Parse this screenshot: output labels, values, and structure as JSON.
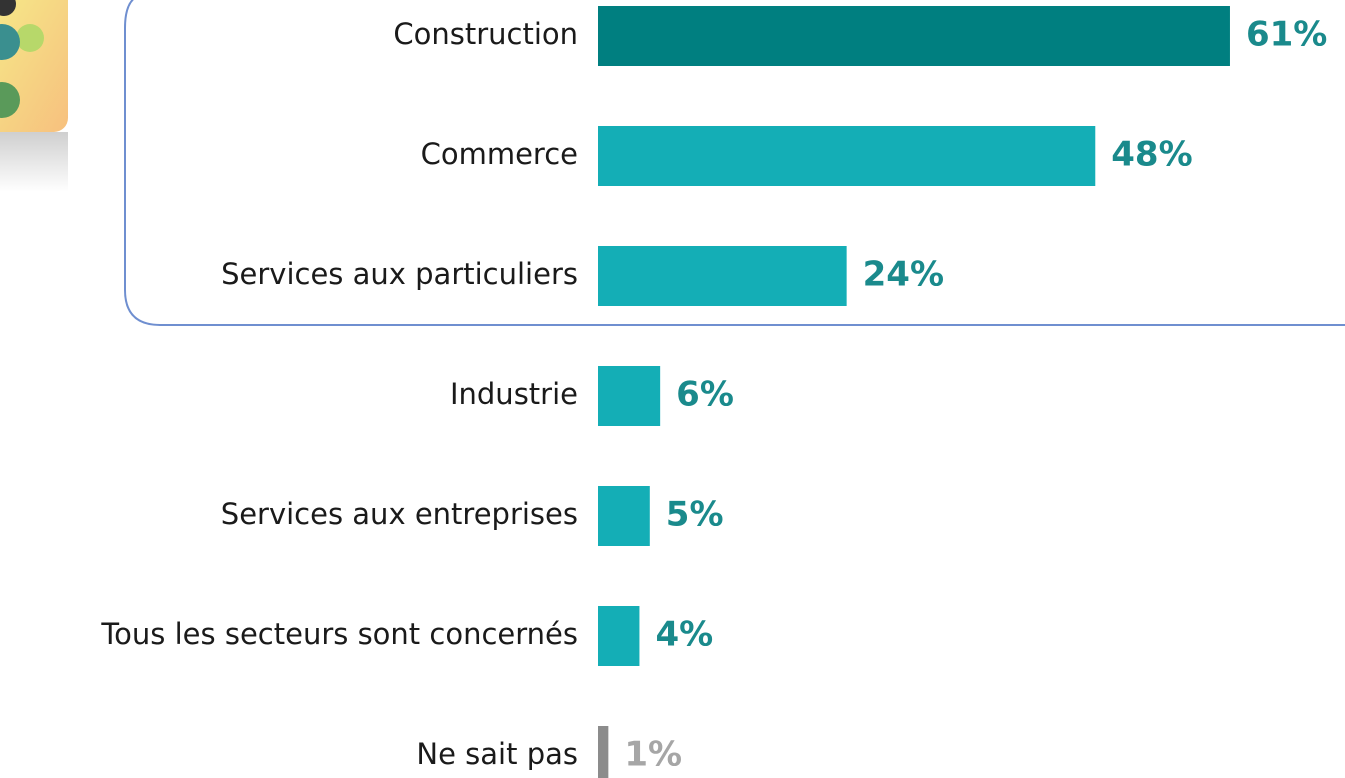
{
  "chart_data": {
    "type": "bar",
    "orientation": "horizontal",
    "categories": [
      "Construction",
      "Commerce",
      "Services aux particuliers",
      "Industrie",
      "Services aux entreprises",
      "Tous les secteurs sont concernés",
      "Ne sait pas"
    ],
    "values": [
      61,
      48,
      24,
      6,
      5,
      4,
      1
    ],
    "value_labels": [
      "61%",
      "48%",
      "24%",
      "6%",
      "5%",
      "4%",
      "1%"
    ],
    "colors": [
      "#007f80",
      "#14aeb6",
      "#14aeb6",
      "#14aeb6",
      "#14aeb6",
      "#14aeb6",
      "#8c8c8c"
    ],
    "label_colors": [
      "#1a8a8c",
      "#1a8a8c",
      "#1a8a8c",
      "#1a8a8c",
      "#1a8a8c",
      "#1a8a8c",
      "#a6a6a6"
    ]
  }
}
